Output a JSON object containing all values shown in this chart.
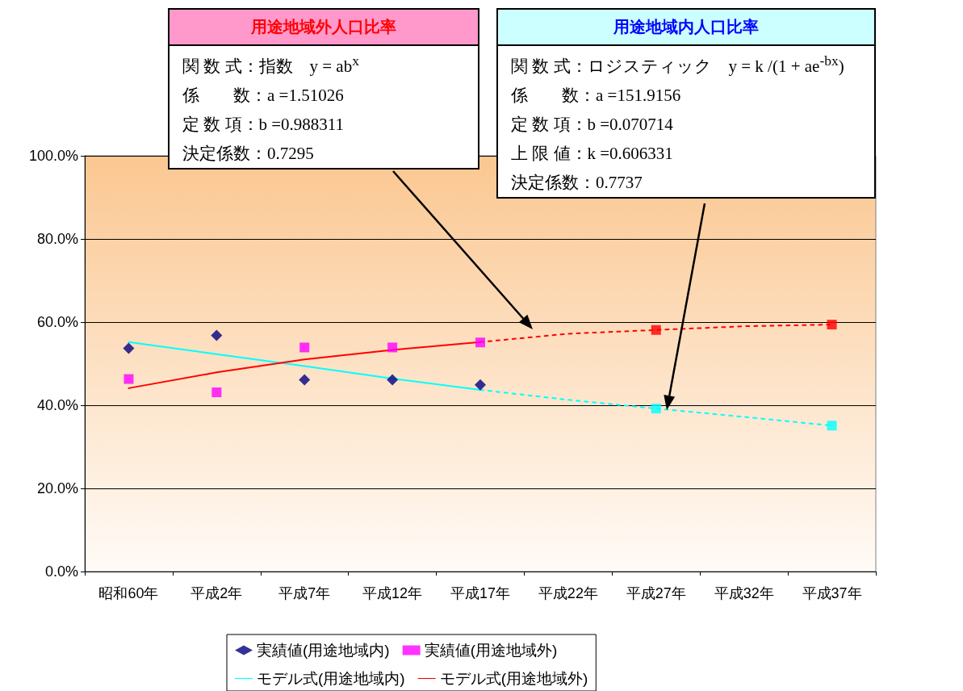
{
  "chart_data": {
    "type": "line",
    "categories": [
      "昭和60年",
      "平成2年",
      "平成7年",
      "平成12年",
      "平成17年",
      "平成22年",
      "平成27年",
      "平成32年",
      "平成37年"
    ],
    "ylim": [
      0,
      100
    ],
    "yticks": [
      {
        "value": 0,
        "label": "0.0%"
      },
      {
        "value": 20,
        "label": "20.0%"
      },
      {
        "value": 40,
        "label": "40.0%"
      },
      {
        "value": 60,
        "label": "60.0%"
      },
      {
        "value": 80,
        "label": "80.0%"
      },
      {
        "value": 100,
        "label": "100.0%"
      }
    ],
    "grid": "y",
    "legend": "bottom",
    "series": [
      {
        "name": "実績値(用途地域内)",
        "type": "scatter",
        "marker": "diamond",
        "color": "#000080",
        "values": [
          53.7,
          56.8,
          46.1,
          46.1,
          44.9,
          null,
          null,
          null,
          null
        ]
      },
      {
        "name": "実績値(用途地域外)",
        "type": "scatter",
        "marker": "square",
        "color": "#ff00ff",
        "values": [
          46.3,
          43.1,
          53.9,
          53.9,
          55.1,
          null,
          null,
          null,
          null
        ]
      },
      {
        "name": "モデル式(用途地域内)",
        "marker": "none",
        "line_style": "solid",
        "color": "#00ffff",
        "values": [
          55.2,
          52.3,
          49.4,
          46.4,
          43.7,
          null,
          null,
          null,
          null
        ]
      },
      {
        "name": "モデル式(用途地域外)",
        "marker": "none",
        "line_style": "solid",
        "color": "#ff0000",
        "values": [
          44.1,
          47.9,
          51.0,
          53.3,
          55.2,
          null,
          null,
          null,
          null
        ]
      },
      {
        "marker": "none",
        "line_style": "dotted",
        "color": "#00ffff",
        "values": [
          null,
          null,
          null,
          null,
          43.7,
          41.3,
          39.2,
          37.2,
          35.1
        ]
      },
      {
        "marker": "none",
        "line_style": "dotted",
        "color": "#ff0000",
        "values": [
          null,
          null,
          null,
          null,
          55.2,
          57.2,
          58.1,
          59.0,
          59.4
        ]
      },
      {
        "type": "scatter",
        "marker": "square",
        "color": "#00ffff",
        "values": [
          null,
          null,
          null,
          null,
          null,
          null,
          39.2,
          null,
          35.1
        ]
      },
      {
        "type": "scatter",
        "marker": "square",
        "color": "#ff0000",
        "values": [
          null,
          null,
          null,
          null,
          null,
          null,
          58.1,
          null,
          59.4
        ]
      }
    ],
    "annotations": [
      "用途地域外人口比率",
      "関 数 式：指数　y = ab$^{x}$",
      "係　　数：a =1.51026",
      "定 数 項：b =0.988311",
      "決定係数：0.7295",
      "用途地域内人口比率",
      "関 数 式：ロジスティック　y = k /(1 + ae$^{-bx}$)",
      "係　　数：a =151.9156",
      "定 数 項：b =0.070714",
      "上 限 値：k =0.606331",
      "決定係数：0.7737"
    ]
  }
}
